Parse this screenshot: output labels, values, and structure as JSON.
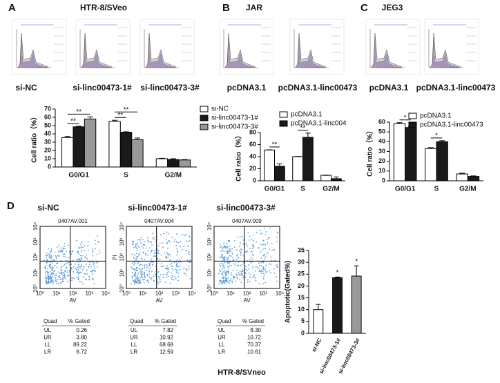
{
  "panels": [
    {
      "letter": "A",
      "title": "HTR-8/SVeo",
      "samples": [
        "si-NC",
        "si-linc00473-1#",
        "si-linc00473-3#"
      ]
    },
    {
      "letter": "B",
      "title": "JAR",
      "samples": [
        "pcDNA3.1",
        "pcDNA3.1-linc00473"
      ]
    },
    {
      "letter": "C",
      "title": "JEG3",
      "samples": [
        "pcDNA3.1",
        "pcDNA3.1-linc00473"
      ]
    }
  ],
  "chart_data": [
    {
      "type": "bar",
      "y_label": "Cell ratio（%）",
      "categories": [
        "G0/G1",
        "S",
        "G2/M"
      ],
      "series": [
        {
          "name": "si-NC",
          "color": "#ffffff",
          "values": [
            35.5,
            55,
            10
          ],
          "errors": [
            1.5,
            1.5,
            0.5
          ]
        },
        {
          "name": "si-linc00473-1#",
          "color": "#1a1a1a",
          "values": [
            48.5,
            42,
            9
          ],
          "errors": [
            0.8,
            0.5,
            1
          ]
        },
        {
          "name": "si-linc00473-3#",
          "color": "#999999",
          "values": [
            58,
            33,
            8.5
          ],
          "errors": [
            2.5,
            2,
            0.5
          ]
        }
      ],
      "ylim": [
        0,
        70
      ],
      "yticks": [
        0,
        10,
        20,
        30,
        40,
        50,
        60,
        70
      ],
      "annotations": [
        {
          "text": "**"
        },
        {
          "text": "**"
        },
        {
          "text": "**"
        },
        {
          "text": "**"
        }
      ]
    },
    {
      "type": "bar",
      "y_label": "Cell ratio（%）",
      "categories": [
        "G0/G1",
        "S",
        "G2/M"
      ],
      "series": [
        {
          "name": "pcDNA3.1",
          "color": "#ffffff",
          "values": [
            51,
            40,
            9
          ],
          "errors": [
            0.5,
            0.5,
            0.5
          ]
        },
        {
          "name": "pcDNA3.1-linc004",
          "color": "#1a1a1a",
          "values": [
            24,
            72,
            3.5
          ],
          "errors": [
            4,
            7,
            3
          ]
        }
      ],
      "ylim": [
        0,
        80
      ],
      "yticks": [
        0,
        20,
        40,
        60,
        80
      ],
      "annotations": [
        {
          "text": "**"
        },
        {
          "text": "**"
        }
      ]
    },
    {
      "type": "bar",
      "y_label": "Cell ratio（%）",
      "categories": [
        "G0/G1",
        "S",
        "G2/M"
      ],
      "series": [
        {
          "name": "pcDNA3.1",
          "color": "#ffffff",
          "values": [
            58.5,
            33,
            7
          ],
          "errors": [
            1,
            1,
            0.8
          ]
        },
        {
          "name": "pcDNA3.1-linc00473",
          "color": "#1a1a1a",
          "values": [
            54.5,
            40,
            4.5
          ],
          "errors": [
            1,
            1,
            0.5
          ]
        }
      ],
      "ylim": [
        0,
        60
      ],
      "yticks": [
        0,
        10,
        20,
        30,
        40,
        50,
        60
      ],
      "annotations": [
        {
          "text": "*"
        },
        {
          "text": "*"
        }
      ]
    },
    {
      "type": "bar",
      "y_label": "Apoptotic(Gated%)",
      "categories": [
        "si-NC",
        "si-linc00473-1#",
        "si-linc00473-3#"
      ],
      "values": [
        10,
        23.5,
        24.2
      ],
      "errors": [
        2.2,
        0.3,
        4.3
      ],
      "colors": [
        "#ffffff",
        "#1a1a1a",
        "#999999"
      ],
      "ylim": [
        0,
        35
      ],
      "yticks": [
        0,
        5,
        10,
        15,
        20,
        25,
        30,
        35
      ],
      "annotations": [
        {
          "text": "*"
        },
        {
          "text": "*"
        }
      ]
    }
  ],
  "panel_d": {
    "letter": "D",
    "footer": "HTR-8/SVneo",
    "flow": [
      {
        "title": "si-NC",
        "subtitle": "0407AV.001",
        "x_label": "AV",
        "ticks": [
          "10⁰",
          "10¹",
          "10²",
          "10³",
          "10⁴"
        ],
        "table": {
          "header": [
            "Quad",
            "% Gated"
          ],
          "rows": [
            [
              "UL",
              "0.26"
            ],
            [
              "UR",
              "3.80"
            ],
            [
              "LL",
              "89.22"
            ],
            [
              "LR",
              "6.72"
            ]
          ]
        }
      },
      {
        "title": "si-linc00473-1#",
        "subtitle": "0407AV.004",
        "x_label": "AV",
        "y_label": "PI",
        "ticks": [
          "10⁰",
          "10¹",
          "10²",
          "10³",
          "10⁴"
        ],
        "table": {
          "header": [
            "Quad",
            "% Gated"
          ],
          "rows": [
            [
              "UL",
              "7.82"
            ],
            [
              "UR",
              "10.92"
            ],
            [
              "LL",
              "68.68"
            ],
            [
              "LR",
              "12.59"
            ]
          ]
        }
      },
      {
        "title": "si-linc00473-3#",
        "subtitle": "0407AV.009",
        "x_label": "AV",
        "ticks": [
          "10⁰",
          "10¹",
          "10²",
          "10³",
          "10⁴"
        ],
        "table": {
          "header": [
            "Quad",
            "% Gated"
          ],
          "rows": [
            [
              "UL",
              "8.30"
            ],
            [
              "UR",
              "10.72"
            ],
            [
              "LL",
              "70.37"
            ],
            [
              "LR",
              "10.61"
            ]
          ]
        }
      }
    ]
  }
}
